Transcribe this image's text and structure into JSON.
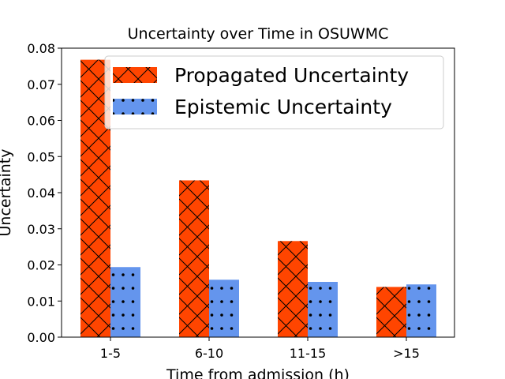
{
  "chart_data": {
    "type": "bar",
    "title": "Uncertainty over Time in OSUWMC",
    "xlabel": "Time from admission (h)",
    "ylabel": "Uncertainty",
    "categories": [
      "1-5",
      "6-10",
      "11-15",
      ">15"
    ],
    "series": [
      {
        "name": "Propagated Uncertainty",
        "values": [
          0.0768,
          0.0434,
          0.0266,
          0.0139
        ],
        "color": "#ff4500",
        "hatch": "crosshatch"
      },
      {
        "name": "Epistemic Uncertainty",
        "values": [
          0.0194,
          0.0159,
          0.0153,
          0.0146
        ],
        "color": "#6495ed",
        "hatch": "dots"
      }
    ],
    "ylim": [
      0,
      0.08
    ],
    "yticks": [
      "0.00",
      "0.01",
      "0.02",
      "0.03",
      "0.04",
      "0.05",
      "0.06",
      "0.07",
      "0.08"
    ],
    "legend_position": "top-right",
    "grid": false
  }
}
